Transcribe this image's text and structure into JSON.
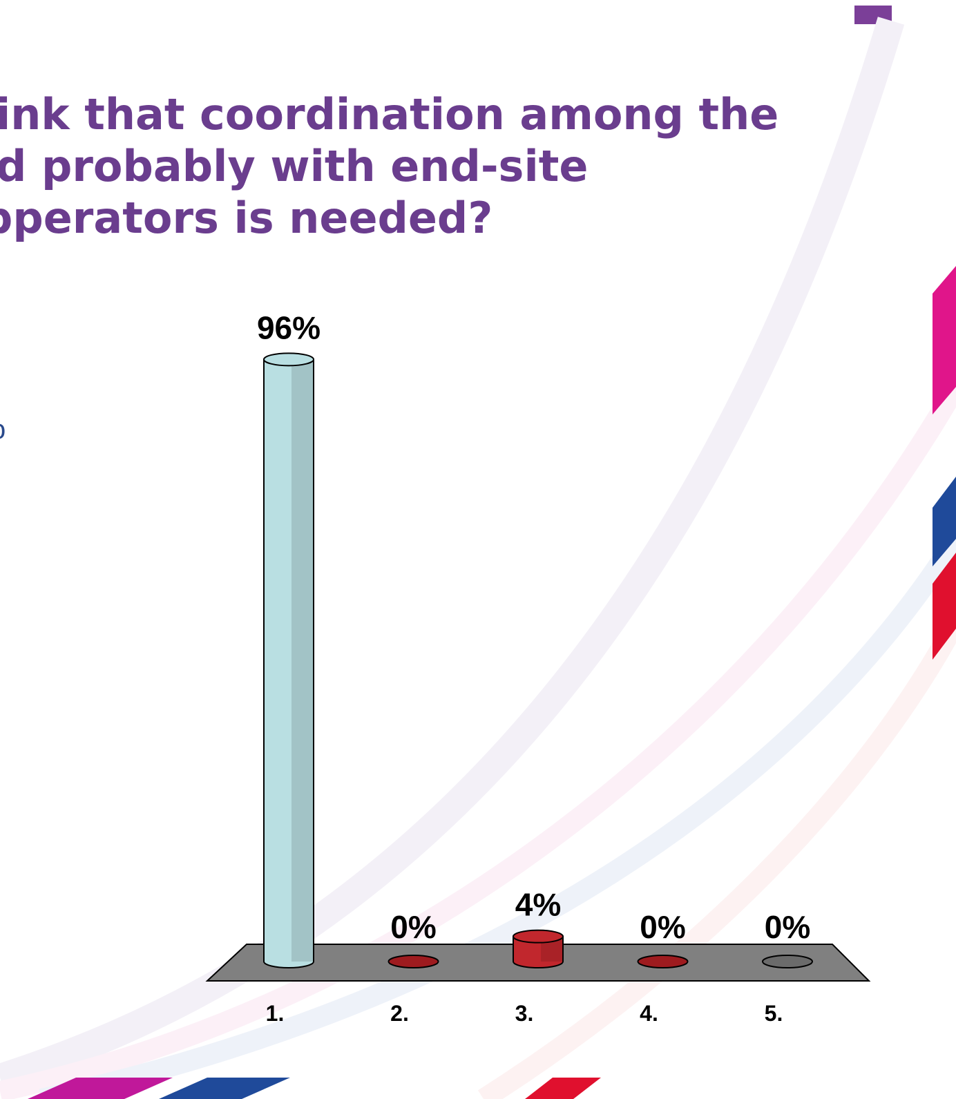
{
  "chart_data": {
    "type": "bar3d",
    "title": [
      "ink that coordination among the",
      "d probably with end-site",
      "pperators is needed?"
    ],
    "side_text": "o",
    "categories": [
      "1.",
      "2.",
      "3.",
      "4.",
      "5."
    ],
    "values": [
      96,
      0,
      4,
      0,
      0
    ],
    "value_labels": [
      "96%",
      "0%",
      "4%",
      "0%",
      "0%"
    ],
    "colors": [
      "#b9dfe2",
      "#9e1b1f",
      "#c1272d",
      "#9e1b1f",
      "#6b6b6b"
    ]
  }
}
